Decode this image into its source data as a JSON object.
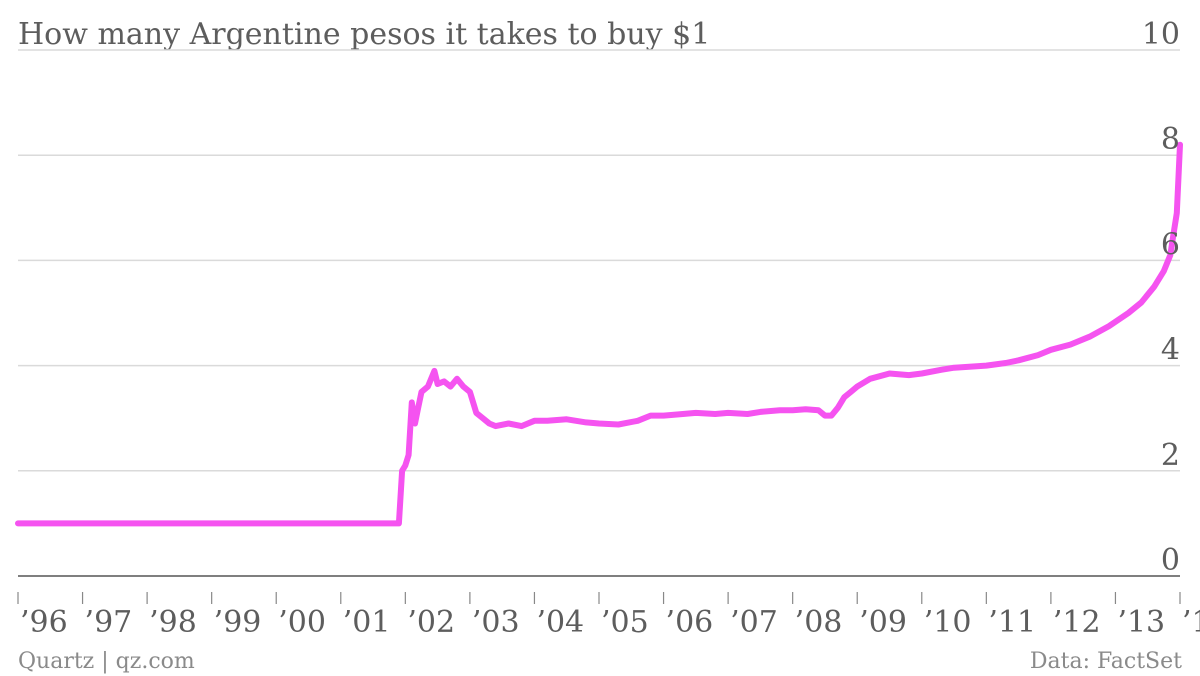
{
  "footer": {
    "source_left": "Quartz | qz.com",
    "source_right": "Data: FactSet"
  },
  "chart_data": {
    "type": "line",
    "title": "How many Argentine pesos it takes to buy $1",
    "xlabel": "",
    "ylabel": "",
    "xlim": [
      1996.0,
      2014.0
    ],
    "ylim": [
      0,
      10
    ],
    "yticks": [
      0,
      2,
      4,
      6,
      8,
      10
    ],
    "ytick_labels": [
      "0",
      "2",
      "4",
      "6",
      "8",
      "10"
    ],
    "xticks": [
      1996,
      1997,
      1998,
      1999,
      2000,
      2001,
      2002,
      2003,
      2004,
      2005,
      2006,
      2007,
      2008,
      2009,
      2010,
      2011,
      2012,
      2013,
      2014
    ],
    "xtick_labels": [
      "’96",
      "’97",
      "’98",
      "’99",
      "’00",
      "’01",
      "’02",
      "’03",
      "’04",
      "’05",
      "’06",
      "’07",
      "’08",
      "’09",
      "’10",
      "’11",
      "’12",
      "’13",
      "’1"
    ],
    "grid": true,
    "y_axis_position": "right",
    "colors": {
      "line": "#f553f0",
      "grid": "#dadada",
      "axis": "#555555",
      "text": "#5d5d5d"
    },
    "series": [
      {
        "x": [
          1996.0,
          1998.0,
          2000.0,
          2001.9,
          2001.95,
          2002.0,
          2002.05,
          2002.1,
          2002.15,
          2002.2,
          2002.25,
          2002.35,
          2002.45,
          2002.5,
          2002.6,
          2002.7,
          2002.8,
          2002.9,
          2003.0,
          2003.1,
          2003.2,
          2003.3,
          2003.4,
          2003.6,
          2003.8,
          2004.0,
          2004.2,
          2004.5,
          2004.8,
          2005.0,
          2005.3,
          2005.6,
          2005.8,
          2006.0,
          2006.3,
          2006.5,
          2006.8,
          2007.0,
          2007.3,
          2007.5,
          2007.8,
          2008.0,
          2008.2,
          2008.4,
          2008.5,
          2008.6,
          2008.7,
          2008.8,
          2008.9,
          2009.0,
          2009.2,
          2009.5,
          2009.8,
          2010.0,
          2010.3,
          2010.5,
          2011.0,
          2011.3,
          2011.5,
          2011.8,
          2012.0,
          2012.3,
          2012.6,
          2012.9,
          2013.2,
          2013.4,
          2013.6,
          2013.75,
          2013.85,
          2013.9,
          2013.95,
          2014.0
        ],
        "y": [
          1.0,
          1.0,
          1.0,
          1.0,
          2.0,
          2.1,
          2.3,
          3.3,
          2.9,
          3.2,
          3.5,
          3.6,
          3.9,
          3.65,
          3.7,
          3.6,
          3.75,
          3.6,
          3.5,
          3.1,
          3.0,
          2.9,
          2.85,
          2.9,
          2.85,
          2.95,
          2.95,
          2.98,
          2.92,
          2.9,
          2.88,
          2.95,
          3.05,
          3.05,
          3.08,
          3.1,
          3.08,
          3.1,
          3.08,
          3.12,
          3.15,
          3.15,
          3.17,
          3.15,
          3.05,
          3.05,
          3.2,
          3.4,
          3.5,
          3.6,
          3.75,
          3.85,
          3.82,
          3.85,
          3.92,
          3.96,
          4.0,
          4.05,
          4.1,
          4.2,
          4.3,
          4.4,
          4.55,
          4.75,
          5.0,
          5.2,
          5.5,
          5.8,
          6.1,
          6.5,
          6.9,
          8.2
        ]
      }
    ]
  }
}
